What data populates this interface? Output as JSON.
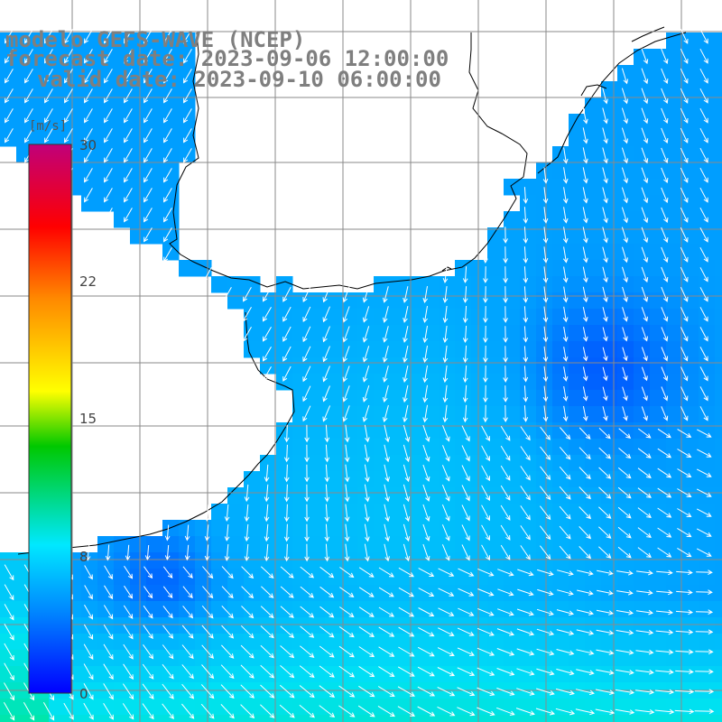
{
  "title": {
    "line1": "modelo GEFS-WAVE (NCEP)",
    "line2": "forecast date: 2023-09-06 12:00:00",
    "line3": "valid date: 2023-09-10 06:00:00"
  },
  "colorbar": {
    "unit": "[m/s]",
    "ticks": [
      "30",
      "22",
      "15",
      "8",
      "0"
    ],
    "range": [
      0,
      30
    ],
    "colors": [
      "#0000ff",
      "#0088ff",
      "#00e0ff",
      "#00d000",
      "#ffff00",
      "#ff8800",
      "#ff0000",
      "#c00080"
    ]
  },
  "map": {
    "variable": "wind speed and direction",
    "land_color": "#ffffff",
    "coastline_color": "#000000",
    "grid_color": "#888888",
    "arrow_color": "#ffffff",
    "icons": [
      "wind-arrow-icon"
    ]
  }
}
